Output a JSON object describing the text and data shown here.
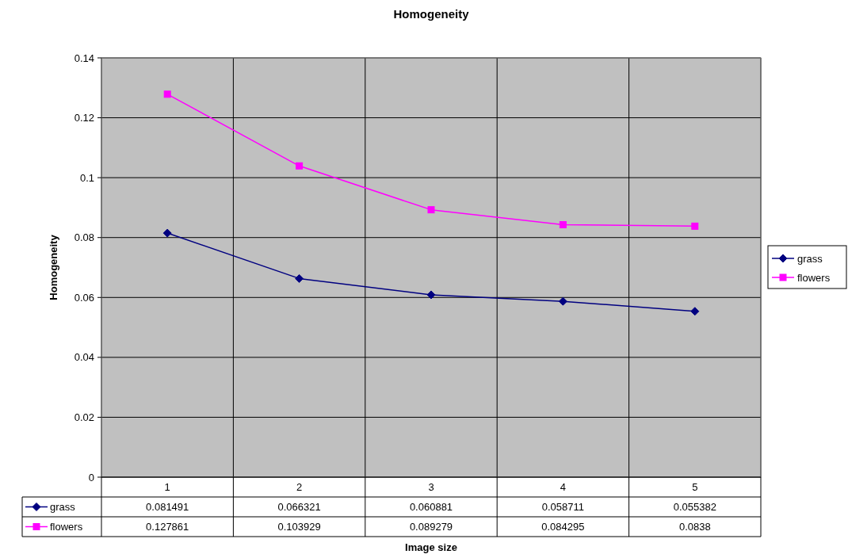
{
  "chart_data": {
    "type": "line",
    "title": "Homogeneity",
    "xlabel": "Image size",
    "ylabel": "Homogeneity",
    "categories": [
      "1",
      "2",
      "3",
      "4",
      "5"
    ],
    "series": [
      {
        "name": "grass",
        "color": "#000080",
        "marker": "diamond",
        "values": [
          0.081491,
          0.066321,
          0.060881,
          0.058711,
          0.055382
        ]
      },
      {
        "name": "flowers",
        "color": "#ff00ff",
        "marker": "square",
        "values": [
          0.127861,
          0.103929,
          0.089279,
          0.084295,
          0.0838
        ]
      }
    ],
    "ylim": [
      0,
      0.14
    ],
    "yticks": [
      0,
      0.02,
      0.04,
      0.06,
      0.08,
      0.1,
      0.12,
      0.14
    ],
    "grid": true,
    "legend": "right",
    "data_labels": true,
    "line_style": "solid"
  }
}
